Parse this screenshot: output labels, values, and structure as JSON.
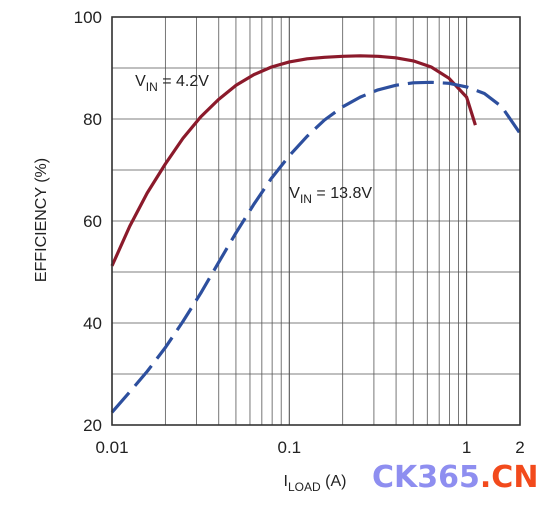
{
  "chart_data": {
    "type": "line",
    "x_scale": "log",
    "xlim": [
      0.01,
      2
    ],
    "ylim": [
      20,
      100
    ],
    "grid": true,
    "xlabel": {
      "main": "I",
      "sub": "LOAD",
      "rest": " (A)"
    },
    "ylabel": "EFFICIENCY (%)",
    "x_ticks": [
      {
        "value": 0.01,
        "label": "0.01"
      },
      {
        "value": 0.1,
        "label": "0.1"
      },
      {
        "value": 1,
        "label": "1"
      },
      {
        "value": 2,
        "label": "2"
      }
    ],
    "y_ticks": [
      {
        "value": 20,
        "label": "20"
      },
      {
        "value": 40,
        "label": "40"
      },
      {
        "value": 60,
        "label": "60"
      },
      {
        "value": 80,
        "label": "80"
      },
      {
        "value": 100,
        "label": "100"
      }
    ],
    "series": [
      {
        "name": {
          "main": "V",
          "sub": "IN",
          "rest": " = 4.2V"
        },
        "label_at": [
          0.0135,
          86.5
        ],
        "color": "#8b1a2b",
        "style": "solid",
        "points": [
          [
            0.01,
            51.2
          ],
          [
            0.0126,
            59
          ],
          [
            0.0158,
            65.5
          ],
          [
            0.02,
            71.2
          ],
          [
            0.0251,
            76.2
          ],
          [
            0.0316,
            80.4
          ],
          [
            0.0398,
            83.8
          ],
          [
            0.0501,
            86.6
          ],
          [
            0.0631,
            88.7
          ],
          [
            0.0794,
            90.2
          ],
          [
            0.1,
            91.2
          ],
          [
            0.126,
            91.8
          ],
          [
            0.158,
            92.1
          ],
          [
            0.2,
            92.3
          ],
          [
            0.251,
            92.4
          ],
          [
            0.316,
            92.3
          ],
          [
            0.398,
            92
          ],
          [
            0.501,
            91.4
          ],
          [
            0.631,
            90.2
          ],
          [
            0.794,
            88
          ],
          [
            1.0,
            84.3
          ],
          [
            1.12,
            78.8
          ]
        ]
      },
      {
        "name": {
          "main": "V",
          "sub": "IN",
          "rest": " = 13.8V"
        },
        "label_at": [
          0.1,
          64.5
        ],
        "color": "#2d4f9e",
        "style": "dashed",
        "points": [
          [
            0.01,
            22.5
          ],
          [
            0.0126,
            26.5
          ],
          [
            0.0158,
            30.5
          ],
          [
            0.02,
            35.2
          ],
          [
            0.0251,
            40.3
          ],
          [
            0.0316,
            45.8
          ],
          [
            0.0398,
            51.8
          ],
          [
            0.0501,
            57.7
          ],
          [
            0.0631,
            63.3
          ],
          [
            0.0794,
            68.4
          ],
          [
            0.1,
            72.8
          ],
          [
            0.126,
            76.6
          ],
          [
            0.158,
            79.8
          ],
          [
            0.2,
            82.4
          ],
          [
            0.251,
            84.3
          ],
          [
            0.316,
            85.7
          ],
          [
            0.398,
            86.6
          ],
          [
            0.501,
            87.1
          ],
          [
            0.631,
            87.2
          ],
          [
            0.794,
            87
          ],
          [
            1.0,
            86.3
          ],
          [
            1.26,
            85
          ],
          [
            1.58,
            82.4
          ],
          [
            2.0,
            77.2
          ]
        ]
      }
    ]
  },
  "watermark": {
    "part1": "CK365",
    "dot": ".",
    "part2": "CN",
    "color1": "#8e8ef0",
    "color2": "#f24a1c"
  }
}
